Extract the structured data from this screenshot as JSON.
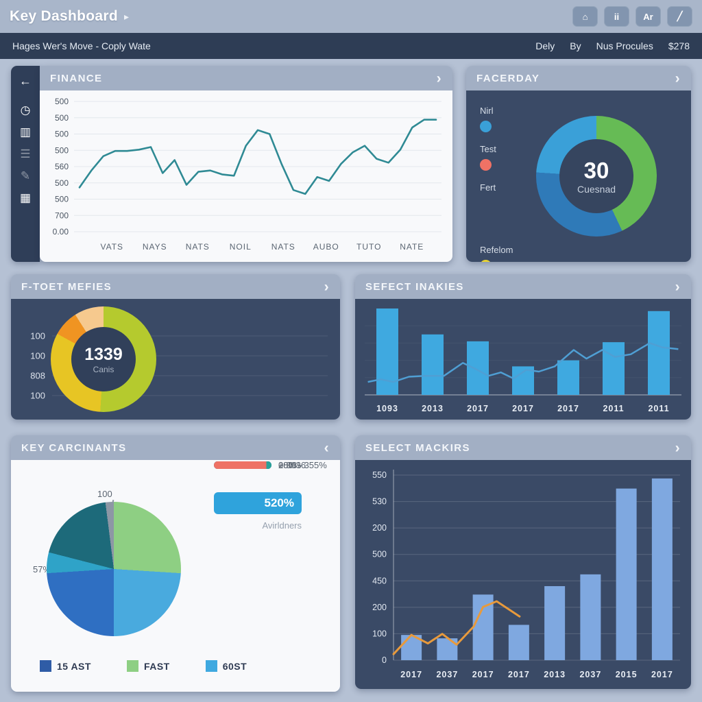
{
  "colors": {
    "page_bg": "#b5c1d4",
    "topbar_bg": "#a9b6ca",
    "subbar_bg": "#2e3d55",
    "panel_header_bg": "#a2afc4",
    "panel_dark_bg": "#3a4a66",
    "panel_white_bg": "#f8f9fb",
    "sidebar_bg": "#2f3e58",
    "accent_teal": "#2f8a94",
    "accent_blue": "#3fa9e0",
    "accent_orange": "#e89a3c",
    "badge_blue": "#2fa3dc"
  },
  "header": {
    "title": "Key Dashboard",
    "chevron": "▸",
    "icons": [
      {
        "name": "home-icon",
        "glyph": "⌂"
      },
      {
        "name": "stats-icon",
        "glyph": "ii"
      },
      {
        "name": "text-icon",
        "glyph": "Ar"
      },
      {
        "name": "edit-icon",
        "glyph": "╱"
      }
    ]
  },
  "subheader": {
    "left": "Hages Wer's Move - Coply Wate",
    "right": [
      "Dely",
      "By",
      "Nus Procules",
      "$278"
    ]
  },
  "sidebar": {
    "icons": [
      {
        "name": "back-icon",
        "glyph": "←",
        "dim": false
      },
      {
        "name": "gauge-icon",
        "glyph": "◷",
        "dim": false
      },
      {
        "name": "chart-icon",
        "glyph": "▥",
        "dim": false
      },
      {
        "name": "list-icon",
        "glyph": "☰",
        "dim": true
      },
      {
        "name": "edit-icon",
        "glyph": "✎",
        "dim": true
      },
      {
        "name": "grid-icon",
        "glyph": "▦",
        "dim": false
      }
    ]
  },
  "panels": {
    "finance": {
      "title": "FINANCE",
      "chevron": "›"
    },
    "facerday": {
      "title": "FACERDAY",
      "chevron": "›",
      "center_value": "30",
      "center_label": "Cuesnad",
      "legend": [
        {
          "label": "Nirl",
          "color": "#3aa0d8"
        },
        {
          "label": "Test",
          "color": "#ef7265"
        },
        {
          "label": "Fert",
          "color": ""
        },
        {
          "label": "Refelom",
          "color": "#e8d332"
        }
      ]
    },
    "ftoet": {
      "title": "F-TOET MEFIES",
      "chevron": "›",
      "center_value": "1339",
      "center_label": "Canis",
      "axis_labels": [
        "100",
        "100",
        "808",
        "100"
      ]
    },
    "sefect": {
      "title": "SEFECT INAKIES",
      "chevron": "›"
    },
    "keycarc": {
      "title": "KEY CARCINANTS",
      "chevron": "‹",
      "pie_top_label": "100",
      "pie_left_label": "57%",
      "badge": {
        "value": "520%",
        "label": "Avirldners",
        "color": "#2fa3dc"
      },
      "bars": [
        {
          "label": "+ 3036",
          "color": "#1d7f86",
          "color2": ""
        },
        {
          "label": "280%",
          "color": "#2f5ca6",
          "color2": ""
        },
        {
          "label": "00% - 355%",
          "color": "#ee7265",
          "color2": "#2aa198"
        }
      ],
      "legend": [
        {
          "label": "15 AST",
          "color": "#2f5ca6"
        },
        {
          "label": "FAST",
          "color": "#8ecf83"
        },
        {
          "label": "60ST",
          "color": "#3fa9e0"
        }
      ]
    },
    "mackirs": {
      "title": "SELECT MACKIRS",
      "chevron": "›"
    }
  },
  "chart_data": [
    {
      "id": "finance",
      "type": "line",
      "title": "FINANCE",
      "y_ticks": [
        "500",
        "500",
        "500",
        "500",
        "560",
        "500",
        "500",
        "700",
        "0.00"
      ],
      "x_ticks": [
        "VATS",
        "NAYS",
        "NATS",
        "NOIL",
        "NATS",
        "AUBO",
        "TUTO",
        "NATE"
      ],
      "ylim": [
        0,
        1
      ],
      "grid": true,
      "line_color": "#2f8a94",
      "values": [
        0.34,
        0.47,
        0.58,
        0.62,
        0.62,
        0.63,
        0.65,
        0.45,
        0.55,
        0.36,
        0.46,
        0.47,
        0.44,
        0.43,
        0.66,
        0.78,
        0.75,
        0.52,
        0.32,
        0.29,
        0.42,
        0.39,
        0.52,
        0.61,
        0.66,
        0.56,
        0.53,
        0.63,
        0.8,
        0.86,
        0.86
      ]
    },
    {
      "id": "facerday",
      "type": "donut",
      "center_value": "30",
      "center_label": "Cuesnad",
      "segments": [
        {
          "name": "green",
          "value": 43,
          "color": "#66bb55"
        },
        {
          "name": "dark-blue",
          "value": 33,
          "color": "#2f7ab8"
        },
        {
          "name": "light-blue",
          "value": 24,
          "color": "#3aa0d8"
        }
      ]
    },
    {
      "id": "ftoet",
      "type": "donut",
      "center_value": "1339",
      "center_label": "Canis",
      "segments": [
        {
          "name": "yellow-green",
          "value": 51,
          "color": "#b5ca2e"
        },
        {
          "name": "yellow",
          "value": 32,
          "color": "#e7c524"
        },
        {
          "name": "orange",
          "value": 8,
          "color": "#f09422"
        },
        {
          "name": "peach",
          "value": 9,
          "color": "#f6c98e"
        }
      ]
    },
    {
      "id": "sefect",
      "type": "bar-line",
      "categories": [
        "1093",
        "2013",
        "2017",
        "2017",
        "2017",
        "2011",
        "2011"
      ],
      "bar_values": [
        1.0,
        0.7,
        0.62,
        0.33,
        0.4,
        0.61,
        0.97
      ],
      "ylim": [
        0,
        1
      ],
      "bar_color": "#3fa9e0",
      "line_color": "#4f9fd4",
      "line_points": [
        [
          0.01,
          0.15
        ],
        [
          0.05,
          0.18
        ],
        [
          0.09,
          0.15
        ],
        [
          0.14,
          0.21
        ],
        [
          0.19,
          0.22
        ],
        [
          0.25,
          0.22
        ],
        [
          0.31,
          0.37
        ],
        [
          0.35,
          0.3
        ],
        [
          0.39,
          0.22
        ],
        [
          0.43,
          0.26
        ],
        [
          0.47,
          0.19
        ],
        [
          0.51,
          0.29
        ],
        [
          0.55,
          0.27
        ],
        [
          0.6,
          0.33
        ],
        [
          0.66,
          0.52
        ],
        [
          0.7,
          0.42
        ],
        [
          0.75,
          0.52
        ],
        [
          0.79,
          0.44
        ],
        [
          0.84,
          0.47
        ],
        [
          0.9,
          0.6
        ],
        [
          0.94,
          0.55
        ],
        [
          0.99,
          0.53
        ]
      ]
    },
    {
      "id": "keycarc",
      "type": "pie",
      "labels": {
        "top": "100",
        "left": "57%"
      },
      "segments": [
        {
          "name": "green",
          "value": 26,
          "color": "#8ecf83"
        },
        {
          "name": "light-blue",
          "value": 24,
          "color": "#49aade"
        },
        {
          "name": "royal-blue",
          "value": 24,
          "color": "#2f6fc2"
        },
        {
          "name": "cyan",
          "value": 5,
          "color": "#2fa3c8"
        },
        {
          "name": "dark-teal",
          "value": 19,
          "color": "#1d6a7a"
        },
        {
          "name": "gray",
          "value": 2,
          "color": "#8d97a5"
        }
      ]
    },
    {
      "id": "mackirs",
      "type": "bar-line",
      "categories": [
        "2017",
        "2037",
        "2017",
        "2017",
        "2013",
        "2037",
        "2015",
        "2017"
      ],
      "values": [
        75,
        65,
        195,
        105,
        220,
        255,
        510,
        540
      ],
      "ylim": [
        0,
        550
      ],
      "y_ticks": [
        "550",
        "530",
        "200",
        "500",
        "450",
        "200",
        "100",
        "0"
      ],
      "bar_color": "#7fa8e0",
      "line_color": "#e89a3c",
      "line_points": [
        [
          0.0,
          18
        ],
        [
          0.0625,
          75
        ],
        [
          0.12,
          50
        ],
        [
          0.17,
          78
        ],
        [
          0.22,
          46
        ],
        [
          0.28,
          100
        ],
        [
          0.3125,
          158
        ],
        [
          0.36,
          175
        ],
        [
          0.44,
          130
        ]
      ]
    }
  ]
}
